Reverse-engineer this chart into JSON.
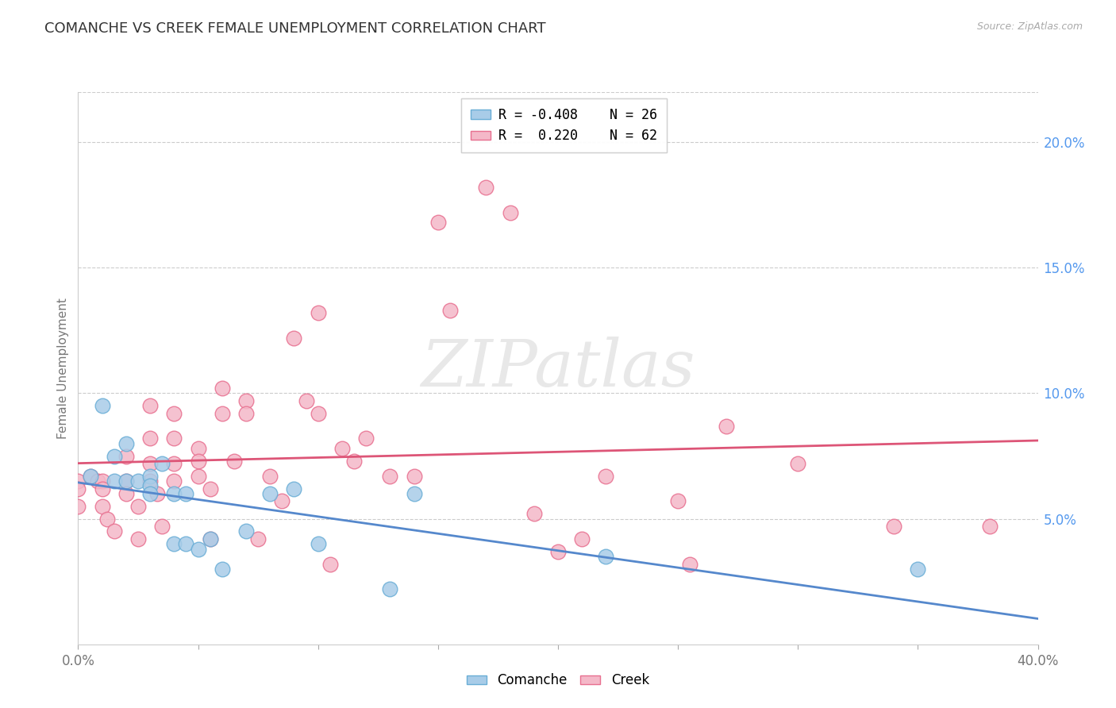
{
  "title": "COMANCHE VS CREEK FEMALE UNEMPLOYMENT CORRELATION CHART",
  "source": "Source: ZipAtlas.com",
  "ylabel": "Female Unemployment",
  "xlim": [
    0.0,
    0.4
  ],
  "ylim": [
    0.0,
    0.22
  ],
  "watermark": "ZIPatlas",
  "legend_r_comanche": "R = -0.408",
  "legend_n_comanche": "N = 26",
  "legend_r_creek": "R =  0.220",
  "legend_n_creek": "N = 62",
  "comanche_color": "#a8cce8",
  "creek_color": "#f4b8c8",
  "comanche_edge": "#6aaed6",
  "creek_edge": "#e87090",
  "line_comanche_color": "#5588cc",
  "line_creek_color": "#dd5577",
  "comanche_x": [
    0.005,
    0.01,
    0.015,
    0.015,
    0.02,
    0.02,
    0.025,
    0.03,
    0.03,
    0.03,
    0.035,
    0.04,
    0.04,
    0.045,
    0.045,
    0.05,
    0.055,
    0.06,
    0.07,
    0.08,
    0.09,
    0.1,
    0.13,
    0.14,
    0.22,
    0.35
  ],
  "comanche_y": [
    0.067,
    0.095,
    0.075,
    0.065,
    0.065,
    0.08,
    0.065,
    0.067,
    0.063,
    0.06,
    0.072,
    0.06,
    0.04,
    0.06,
    0.04,
    0.038,
    0.042,
    0.03,
    0.045,
    0.06,
    0.062,
    0.04,
    0.022,
    0.06,
    0.035,
    0.03
  ],
  "creek_x": [
    0.0,
    0.0,
    0.0,
    0.005,
    0.008,
    0.01,
    0.01,
    0.01,
    0.012,
    0.015,
    0.02,
    0.02,
    0.02,
    0.025,
    0.025,
    0.03,
    0.03,
    0.03,
    0.03,
    0.033,
    0.035,
    0.04,
    0.04,
    0.04,
    0.04,
    0.05,
    0.05,
    0.05,
    0.055,
    0.055,
    0.06,
    0.06,
    0.065,
    0.07,
    0.07,
    0.075,
    0.08,
    0.085,
    0.09,
    0.095,
    0.1,
    0.1,
    0.105,
    0.11,
    0.115,
    0.12,
    0.13,
    0.14,
    0.15,
    0.155,
    0.17,
    0.18,
    0.19,
    0.2,
    0.21,
    0.22,
    0.25,
    0.255,
    0.27,
    0.3,
    0.34,
    0.38
  ],
  "creek_y": [
    0.065,
    0.062,
    0.055,
    0.067,
    0.065,
    0.065,
    0.062,
    0.055,
    0.05,
    0.045,
    0.075,
    0.065,
    0.06,
    0.055,
    0.042,
    0.095,
    0.082,
    0.072,
    0.065,
    0.06,
    0.047,
    0.092,
    0.082,
    0.072,
    0.065,
    0.078,
    0.073,
    0.067,
    0.062,
    0.042,
    0.102,
    0.092,
    0.073,
    0.097,
    0.092,
    0.042,
    0.067,
    0.057,
    0.122,
    0.097,
    0.132,
    0.092,
    0.032,
    0.078,
    0.073,
    0.082,
    0.067,
    0.067,
    0.168,
    0.133,
    0.182,
    0.172,
    0.052,
    0.037,
    0.042,
    0.067,
    0.057,
    0.032,
    0.087,
    0.072,
    0.047,
    0.047
  ]
}
